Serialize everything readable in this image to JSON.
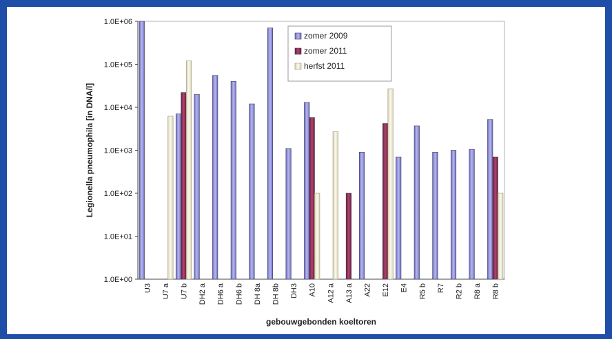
{
  "chart_data": {
    "type": "bar",
    "yscale": "log",
    "ylim": [
      1,
      1000000
    ],
    "ylabel": "Legionella pneumophila [in DNA/l]",
    "xlabel": "gebouwgebonden koeltoren",
    "y_tick_labels": [
      "1.0E+00",
      "1.0E+01",
      "1.0E+02",
      "1.0E+03",
      "1.0E+04",
      "1.0E+05",
      "1.0E+06"
    ],
    "categories": [
      "U3",
      "U7 a",
      "U7 b",
      "DH2 a",
      "DH6 a",
      "DH6 b",
      "DH 8a",
      "DH 8b",
      "DH3",
      "A10",
      "A12 a",
      "A13 a",
      "A22",
      "E12",
      "E4",
      "R5 b",
      "R7",
      "R2 b",
      "R8 a",
      "R8 b"
    ],
    "series": [
      {
        "name": "zomer 2009",
        "color": "#8f8fd6",
        "values": [
          1000000,
          null,
          7000,
          20000,
          55000,
          40000,
          12000,
          700000,
          1100,
          13000,
          null,
          null,
          900,
          null,
          700,
          3700,
          900,
          1000,
          1050,
          5200
        ]
      },
      {
        "name": "zomer 2011",
        "color": "#8c2a4e",
        "values": [
          null,
          null,
          22000,
          null,
          null,
          null,
          null,
          null,
          null,
          5800,
          null,
          100,
          null,
          4200,
          null,
          null,
          null,
          null,
          null,
          700
        ]
      },
      {
        "name": "herfst 2011",
        "color": "#f3efd9",
        "values": [
          null,
          6200,
          120000,
          null,
          null,
          null,
          null,
          null,
          null,
          100,
          2700,
          null,
          null,
          27000,
          null,
          null,
          null,
          null,
          null,
          100
        ]
      }
    ],
    "legend_position": "top-right",
    "grid": false
  }
}
